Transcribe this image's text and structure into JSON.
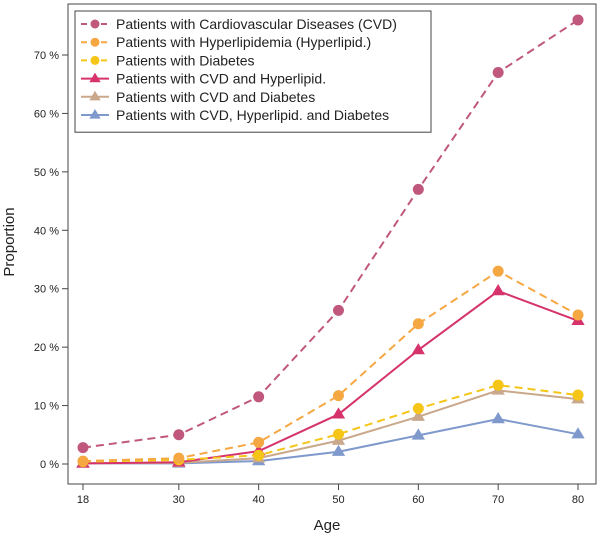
{
  "chart_data": {
    "type": "line",
    "xlabel": "Age",
    "ylabel": "Proportion",
    "x": [
      18,
      30,
      40,
      50,
      60,
      70,
      80
    ],
    "x_ticks": [
      "18",
      "30",
      "40",
      "50",
      "60",
      "70",
      "80"
    ],
    "ylim": [
      0,
      0.77
    ],
    "y_ticks": [
      0,
      0.1,
      0.2,
      0.3,
      0.4,
      0.5,
      0.6,
      0.7
    ],
    "y_tick_labels": [
      "0 %",
      "10 %",
      "20 %",
      "30 %",
      "40 %",
      "50 %",
      "60 %",
      "70 %"
    ],
    "legend_position": "top-left",
    "series": [
      {
        "name": "Patients with Cardiovascular Diseases (CVD)",
        "values": [
          0.028,
          0.05,
          0.115,
          0.263,
          0.47,
          0.67,
          0.76
        ],
        "color": "#c0587e",
        "dashed": true,
        "marker": "circle"
      },
      {
        "name": "Patients with Hyperlipidemia (Hyperlipid.)",
        "values": [
          0.005,
          0.01,
          0.037,
          0.117,
          0.24,
          0.33,
          0.255
        ],
        "color": "#f5a742",
        "dashed": true,
        "marker": "circle"
      },
      {
        "name": "Patients with Diabetes",
        "values": [
          0.004,
          0.007,
          0.015,
          0.051,
          0.095,
          0.135,
          0.118
        ],
        "color": "#f5c518",
        "dashed": true,
        "marker": "circle"
      },
      {
        "name": "Patients with CVD and Hyperlipid.",
        "values": [
          0.001,
          0.003,
          0.022,
          0.085,
          0.195,
          0.296,
          0.245
        ],
        "color": "#d6336c",
        "dashed": false,
        "marker": "triangle"
      },
      {
        "name": "Patients with CVD and Diabetes",
        "values": [
          0.001,
          0.002,
          0.01,
          0.04,
          0.081,
          0.126,
          0.111
        ],
        "color": "#c9a88b",
        "dashed": false,
        "marker": "triangle"
      },
      {
        "name": "Patients with CVD, Hyperlipid. and Diabetes",
        "values": [
          0.001,
          0.001,
          0.005,
          0.021,
          0.049,
          0.077,
          0.051
        ],
        "color": "#7f99cc",
        "dashed": false,
        "marker": "triangle"
      }
    ]
  }
}
